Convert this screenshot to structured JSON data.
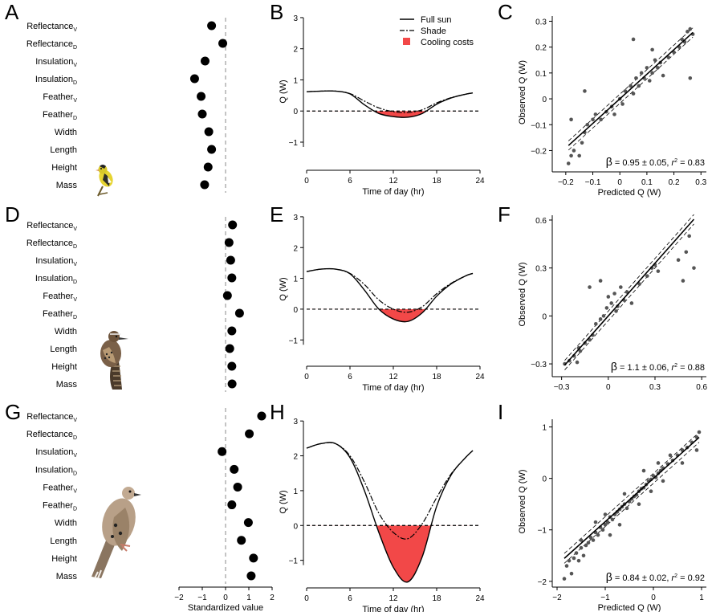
{
  "panel_labels": [
    "A",
    "B",
    "C",
    "D",
    "E",
    "F",
    "G",
    "H",
    "I"
  ],
  "species_icons": [
    "goldfinch-icon",
    "cactus-wren-icon",
    "mourning-dove-icon"
  ],
  "colors": {
    "cooling_fill": "#f24848",
    "points": "#555555",
    "line": "#000000"
  },
  "chart_data": [
    {
      "type": "scatter",
      "panel": "A",
      "kind": "dot",
      "categories": [
        {
          "base": "Reflectance",
          "sub": "V"
        },
        {
          "base": "Reflectance",
          "sub": "D"
        },
        {
          "base": "Insulation",
          "sub": "V"
        },
        {
          "base": "Insulation",
          "sub": "D"
        },
        {
          "base": "Feather",
          "sub": "V"
        },
        {
          "base": "Feather",
          "sub": "D"
        },
        {
          "base": "Width",
          "sub": ""
        },
        {
          "base": "Length",
          "sub": ""
        },
        {
          "base": "Height",
          "sub": ""
        },
        {
          "base": "Mass",
          "sub": ""
        }
      ],
      "values": [
        -0.6,
        -0.12,
        -0.88,
        -1.33,
        -1.05,
        -1.0,
        -0.72,
        -0.6,
        -0.75,
        -0.9
      ],
      "xlim": [
        -2,
        2
      ],
      "xticks": [
        -2,
        -1,
        0,
        1,
        2
      ],
      "xlabel": "",
      "reference_line": 0
    },
    {
      "type": "line",
      "panel": "B",
      "kind": "flux",
      "x": [
        0,
        2,
        4,
        6,
        8,
        10,
        12,
        14,
        16,
        18,
        20,
        22,
        23
      ],
      "series": [
        {
          "name": "Full sun",
          "style": "solid",
          "values": [
            0.62,
            0.64,
            0.64,
            0.55,
            0.2,
            -0.08,
            -0.18,
            -0.2,
            -0.08,
            0.22,
            0.42,
            0.54,
            0.58
          ]
        },
        {
          "name": "Shade",
          "style": "dashdot",
          "values": [
            0.62,
            0.64,
            0.64,
            0.56,
            0.32,
            0.1,
            -0.02,
            -0.05,
            0.04,
            0.26,
            0.43,
            0.54,
            0.58
          ]
        }
      ],
      "fill_name": "Cooling costs",
      "xlim": [
        0,
        24
      ],
      "xticks": [
        0,
        6,
        12,
        18,
        24
      ],
      "ylim": [
        -1.8,
        3.05
      ],
      "yticks": [
        -1,
        0,
        1,
        2,
        3
      ],
      "xlabel": "Time of day (hr)",
      "ylabel": "Q (W)",
      "legend": [
        "Full sun",
        "Shade",
        "Cooling costs"
      ]
    },
    {
      "type": "scatter",
      "panel": "C",
      "kind": "fit",
      "points": [
        [
          -0.19,
          -0.25
        ],
        [
          -0.18,
          -0.22
        ],
        [
          -0.17,
          -0.2
        ],
        [
          -0.15,
          -0.22
        ],
        [
          -0.14,
          -0.17
        ],
        [
          -0.13,
          -0.13
        ],
        [
          -0.12,
          -0.1
        ],
        [
          -0.1,
          -0.08
        ],
        [
          -0.09,
          -0.06
        ],
        [
          -0.07,
          -0.08
        ],
        [
          -0.05,
          -0.05
        ],
        [
          -0.03,
          -0.03
        ],
        [
          -0.02,
          -0.06
        ],
        [
          0.0,
          0.0
        ],
        [
          0.01,
          -0.02
        ],
        [
          0.02,
          0.03
        ],
        [
          0.04,
          0.05
        ],
        [
          0.05,
          0.02
        ],
        [
          0.06,
          0.08
        ],
        [
          0.07,
          0.05
        ],
        [
          0.08,
          0.1
        ],
        [
          0.09,
          0.08
        ],
        [
          0.1,
          0.12
        ],
        [
          0.11,
          0.07
        ],
        [
          0.12,
          0.1
        ],
        [
          0.13,
          0.15
        ],
        [
          0.14,
          0.12
        ],
        [
          0.15,
          0.14
        ],
        [
          0.16,
          0.09
        ],
        [
          0.18,
          0.16
        ],
        [
          0.2,
          0.18
        ],
        [
          0.22,
          0.2
        ],
        [
          0.23,
          0.23
        ],
        [
          0.24,
          0.22
        ],
        [
          0.25,
          0.26
        ],
        [
          0.26,
          0.27
        ],
        [
          0.27,
          0.25
        ],
        [
          0.26,
          0.08
        ],
        [
          0.05,
          0.23
        ],
        [
          -0.13,
          0.03
        ],
        [
          -0.18,
          -0.08
        ],
        [
          0.12,
          0.19
        ]
      ],
      "fit": {
        "slope": 0.95,
        "intercept": 0.0
      },
      "xlim": [
        -0.25,
        0.32
      ],
      "xticks": [
        -0.2,
        -0.1,
        0,
        0.1,
        0.2,
        0.3
      ],
      "ylim": [
        -0.27,
        0.32
      ],
      "yticks": [
        -0.2,
        -0.1,
        0,
        0.1,
        0.2,
        0.3
      ],
      "xlabel": "Predicted Q (W)",
      "ylabel": "Observed Q (W)",
      "annotation": {
        "beta": "β",
        "text": " = 0.95 ± 0.05, ",
        "r": "r",
        "sup": "2",
        "val": " = 0.83"
      }
    },
    {
      "type": "scatter",
      "panel": "D",
      "kind": "dot",
      "categories": [
        {
          "base": "Reflectance",
          "sub": "V"
        },
        {
          "base": "Reflectance",
          "sub": "D"
        },
        {
          "base": "Insulation",
          "sub": "V"
        },
        {
          "base": "Insulation",
          "sub": "D"
        },
        {
          "base": "Feather",
          "sub": "V"
        },
        {
          "base": "Feather",
          "sub": "D"
        },
        {
          "base": "Width",
          "sub": ""
        },
        {
          "base": "Length",
          "sub": ""
        },
        {
          "base": "Height",
          "sub": ""
        },
        {
          "base": "Mass",
          "sub": ""
        }
      ],
      "values": [
        0.3,
        0.15,
        0.22,
        0.27,
        0.08,
        0.6,
        0.27,
        0.18,
        0.27,
        0.28
      ],
      "xlim": [
        -2,
        2
      ],
      "xticks": [
        -2,
        -1,
        0,
        1,
        2
      ],
      "xlabel": "",
      "reference_line": 0
    },
    {
      "type": "line",
      "panel": "E",
      "kind": "flux",
      "x": [
        0,
        2,
        4,
        6,
        8,
        10,
        12,
        14,
        16,
        18,
        20,
        22,
        23
      ],
      "series": [
        {
          "name": "Full sun",
          "style": "solid",
          "values": [
            1.22,
            1.3,
            1.3,
            1.15,
            0.62,
            0.0,
            -0.32,
            -0.4,
            -0.12,
            0.42,
            0.82,
            1.08,
            1.16
          ]
        },
        {
          "name": "Shade",
          "style": "dashdot",
          "values": [
            1.22,
            1.3,
            1.3,
            1.16,
            0.8,
            0.3,
            0.0,
            -0.1,
            0.08,
            0.5,
            0.84,
            1.08,
            1.16
          ]
        }
      ],
      "fill_name": "Cooling costs",
      "xlim": [
        0,
        24
      ],
      "xticks": [
        0,
        6,
        12,
        18,
        24
      ],
      "ylim": [
        -1.75,
        3.05
      ],
      "yticks": [
        -1,
        0,
        1,
        2,
        3
      ],
      "xlabel": "Time of day (hr)",
      "ylabel": "Q (W)"
    },
    {
      "type": "scatter",
      "panel": "F",
      "kind": "fit",
      "points": [
        [
          -0.28,
          -0.3
        ],
        [
          -0.25,
          -0.28
        ],
        [
          -0.22,
          -0.25
        ],
        [
          -0.2,
          -0.29
        ],
        [
          -0.19,
          -0.2
        ],
        [
          -0.18,
          -0.22
        ],
        [
          -0.15,
          -0.17
        ],
        [
          -0.12,
          -0.15
        ],
        [
          -0.1,
          -0.12
        ],
        [
          -0.08,
          -0.05
        ],
        [
          -0.05,
          -0.02
        ],
        [
          -0.03,
          0.0
        ],
        [
          -0.01,
          0.05
        ],
        [
          0.0,
          0.12
        ],
        [
          0.02,
          0.08
        ],
        [
          0.04,
          0.14
        ],
        [
          0.05,
          0.03
        ],
        [
          0.06,
          0.06
        ],
        [
          0.08,
          0.18
        ],
        [
          0.1,
          0.1
        ],
        [
          0.12,
          0.15
        ],
        [
          0.15,
          0.08
        ],
        [
          0.2,
          0.2
        ],
        [
          0.25,
          0.25
        ],
        [
          0.28,
          0.3
        ],
        [
          0.3,
          0.32
        ],
        [
          0.32,
          0.28
        ],
        [
          0.45,
          0.35
        ],
        [
          0.48,
          0.22
        ],
        [
          0.5,
          0.4
        ],
        [
          0.52,
          0.5
        ],
        [
          0.55,
          0.3
        ],
        [
          -0.12,
          0.18
        ],
        [
          -0.05,
          0.22
        ]
      ],
      "fit": {
        "slope": 1.1,
        "intercept": 0.0
      },
      "xlim": [
        -0.36,
        0.63
      ],
      "xticks": [
        -0.3,
        0,
        0.3,
        0.6
      ],
      "ylim": [
        -0.36,
        0.63
      ],
      "yticks": [
        -0.3,
        0,
        0.3,
        0.6
      ],
      "xlabel": "",
      "ylabel": "Observed Q (W)",
      "annotation": {
        "beta": "β",
        "text": " = 1.1 ± 0.06, ",
        "r": "r",
        "sup": "2",
        "val": " = 0.88"
      }
    },
    {
      "type": "scatter",
      "panel": "G",
      "kind": "dot",
      "categories": [
        {
          "base": "Reflectance",
          "sub": "V"
        },
        {
          "base": "Reflectance",
          "sub": "D"
        },
        {
          "base": "Insulation",
          "sub": "V"
        },
        {
          "base": "Insulation",
          "sub": "D"
        },
        {
          "base": "Feather",
          "sub": "V"
        },
        {
          "base": "Feather",
          "sub": "D"
        },
        {
          "base": "Width",
          "sub": ""
        },
        {
          "base": "Length",
          "sub": ""
        },
        {
          "base": "Height",
          "sub": ""
        },
        {
          "base": "Mass",
          "sub": ""
        }
      ],
      "values": [
        1.55,
        1.02,
        -0.15,
        0.37,
        0.52,
        0.27,
        0.98,
        0.68,
        1.2,
        1.1
      ],
      "xlim": [
        -2,
        2
      ],
      "xticks": [
        -2,
        -1,
        0,
        1,
        2
      ],
      "xlabel": "Standardized value",
      "reference_line": 0
    },
    {
      "type": "line",
      "panel": "H",
      "kind": "flux",
      "x": [
        0,
        2,
        4,
        6,
        8,
        10,
        12,
        14,
        16,
        18,
        20,
        22,
        23
      ],
      "series": [
        {
          "name": "Full sun",
          "style": "solid",
          "values": [
            2.22,
            2.35,
            2.35,
            1.95,
            1.0,
            -0.2,
            -1.2,
            -1.62,
            -0.9,
            0.55,
            1.45,
            1.95,
            2.15
          ]
        },
        {
          "name": "Shade",
          "style": "dashdot",
          "values": [
            2.22,
            2.35,
            2.35,
            2.0,
            1.25,
            0.35,
            -0.2,
            -0.38,
            0.05,
            0.8,
            1.48,
            1.95,
            2.15
          ]
        }
      ],
      "fill_name": "Cooling costs",
      "xlim": [
        0,
        24
      ],
      "xticks": [
        0,
        6,
        12,
        18,
        24
      ],
      "ylim": [
        -1.7,
        3.05
      ],
      "yticks": [
        -1,
        0,
        1,
        2,
        3
      ],
      "xlabel": "Time of day (hr)",
      "ylabel": "Q (W)"
    },
    {
      "type": "scatter",
      "panel": "I",
      "kind": "fit",
      "points": [
        [
          -1.85,
          -1.95
        ],
        [
          -1.8,
          -1.7
        ],
        [
          -1.75,
          -1.6
        ],
        [
          -1.7,
          -1.85
        ],
        [
          -1.65,
          -1.55
        ],
        [
          -1.6,
          -1.45
        ],
        [
          -1.55,
          -1.6
        ],
        [
          -1.5,
          -1.35
        ],
        [
          -1.45,
          -1.5
        ],
        [
          -1.4,
          -1.3
        ],
        [
          -1.35,
          -1.25
        ],
        [
          -1.3,
          -1.15
        ],
        [
          -1.25,
          -1.2
        ],
        [
          -1.2,
          -1.05
        ],
        [
          -1.15,
          -1.1
        ],
        [
          -1.1,
          -0.95
        ],
        [
          -1.05,
          -1.0
        ],
        [
          -1.0,
          -0.9
        ],
        [
          -0.95,
          -0.85
        ],
        [
          -0.9,
          -0.75
        ],
        [
          -0.85,
          -0.8
        ],
        [
          -0.8,
          -0.7
        ],
        [
          -0.75,
          -0.65
        ],
        [
          -0.7,
          -0.6
        ],
        [
          -0.65,
          -0.55
        ],
        [
          -0.6,
          -0.5
        ],
        [
          -0.55,
          -0.58
        ],
        [
          -0.5,
          -0.45
        ],
        [
          -0.45,
          -0.4
        ],
        [
          -0.4,
          -0.35
        ],
        [
          -0.35,
          -0.32
        ],
        [
          -0.3,
          -0.25
        ],
        [
          -0.25,
          -0.2
        ],
        [
          -0.2,
          -0.18
        ],
        [
          -0.15,
          -0.12
        ],
        [
          -0.1,
          -0.05
        ],
        [
          -0.05,
          -0.02
        ],
        [
          0.0,
          0.05
        ],
        [
          0.05,
          0.02
        ],
        [
          0.1,
          0.1
        ],
        [
          0.15,
          0.15
        ],
        [
          0.2,
          0.2
        ],
        [
          0.3,
          0.28
        ],
        [
          0.4,
          0.35
        ],
        [
          0.5,
          0.45
        ],
        [
          0.6,
          0.55
        ],
        [
          0.7,
          0.6
        ],
        [
          0.8,
          0.7
        ],
        [
          0.9,
          0.8
        ],
        [
          0.95,
          0.9
        ],
        [
          -1.2,
          -0.85
        ],
        [
          -0.9,
          -1.1
        ],
        [
          -0.6,
          -0.3
        ],
        [
          -0.3,
          -0.5
        ],
        [
          0.2,
          -0.05
        ],
        [
          0.6,
          0.3
        ],
        [
          0.9,
          0.55
        ],
        [
          -1.5,
          -1.2
        ],
        [
          -0.2,
          0.15
        ],
        [
          -0.05,
          -0.25
        ],
        [
          0.35,
          0.45
        ],
        [
          -0.7,
          -0.9
        ],
        [
          -1.0,
          -0.7
        ],
        [
          0.1,
          0.3
        ]
      ],
      "fit": {
        "slope": 0.84,
        "intercept": 0.0
      },
      "xlim": [
        -2.1,
        1.1
      ],
      "xticks": [
        -2,
        -1,
        0,
        1
      ],
      "ylim": [
        -2.05,
        1.15
      ],
      "yticks": [
        -2,
        -1,
        0,
        1
      ],
      "xlabel": "Predicted Q (W)",
      "ylabel": "Observed Q (W)",
      "annotation": {
        "beta": "β",
        "text": " = 0.84 ± 0.02, ",
        "r": "r",
        "sup": "2",
        "val": " = 0.92"
      }
    }
  ]
}
